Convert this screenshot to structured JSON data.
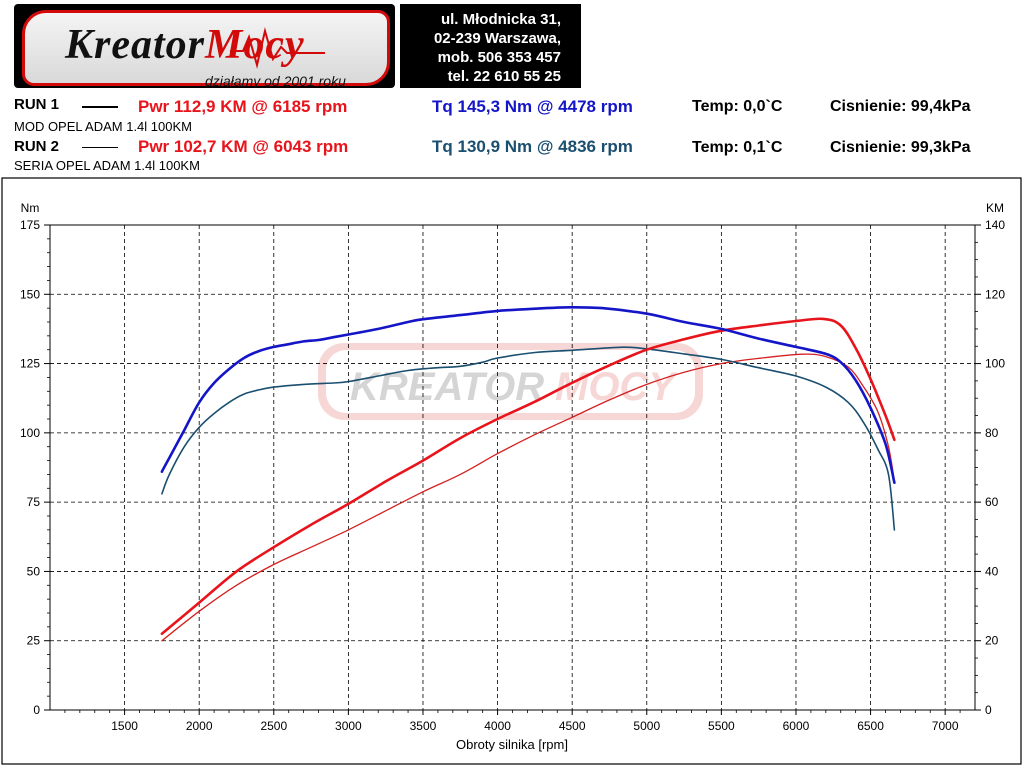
{
  "header": {
    "logo_part1": "Kreator",
    "logo_part2": "Mocy",
    "slogan": "działamy od 2001 roku",
    "address_line1": "ul. Młodnicka 31,",
    "address_line2": "02-239  Warszawa,",
    "mobile": "mob.  506 353 457",
    "phone": "tel.  22 610 55 25"
  },
  "runs": [
    {
      "label": "RUN 1",
      "description": "MOD OPEL ADAM  1.4l 100KM",
      "power": "Pwr  112,9 KM @ 6185 rpm",
      "torque": "Tq 145,3 Nm @ 4478 rpm",
      "temp": "Temp: 0,0`C",
      "pressure": "Cisnienie: 99,4kPa"
    },
    {
      "label": "RUN 2",
      "description": "SERIA OPEL ADAM 1.4l 100KM",
      "power": "Pwr  102,7 KM @ 6043 rpm",
      "torque": "Tq 130,9 Nm @ 4836 rpm",
      "temp": "Temp: 0,1`C",
      "pressure": "Cisnienie: 99,3kPa"
    }
  ],
  "chart_data": {
    "type": "line",
    "xlabel": "Obroty silnika [rpm]",
    "ylabel_left": "Nm",
    "ylabel_right": "KM",
    "xlim": [
      1000,
      7200
    ],
    "ylim_left": [
      0,
      175
    ],
    "ylim_right": [
      0,
      140
    ],
    "x_ticks": [
      1500,
      2000,
      2500,
      3000,
      3500,
      4000,
      4500,
      5000,
      5500,
      6000,
      6500,
      7000
    ],
    "y_ticks_left": [
      0,
      25,
      50,
      75,
      100,
      125,
      150,
      175
    ],
    "y_ticks_right": [
      0,
      20,
      40,
      60,
      80,
      100,
      120,
      140
    ],
    "grid": true,
    "colors": {
      "pwr_run1": "#e8141c",
      "pwr_run2": "#d42020",
      "tq_run1": "#1515c8",
      "tq_run2": "#1a4f70"
    },
    "series": [
      {
        "name": "Tq RUN 1",
        "axis": "left",
        "color": "#1515c8",
        "width": 2.6,
        "points": [
          [
            1750,
            86
          ],
          [
            1800,
            91
          ],
          [
            1900,
            101
          ],
          [
            2000,
            111
          ],
          [
            2100,
            118
          ],
          [
            2200,
            123
          ],
          [
            2300,
            127
          ],
          [
            2400,
            129.5
          ],
          [
            2500,
            131
          ],
          [
            2600,
            132
          ],
          [
            2700,
            133
          ],
          [
            2800,
            133.5
          ],
          [
            2900,
            134.5
          ],
          [
            3000,
            135.5
          ],
          [
            3200,
            137.5
          ],
          [
            3400,
            140
          ],
          [
            3500,
            141
          ],
          [
            3750,
            142.5
          ],
          [
            4000,
            144
          ],
          [
            4250,
            144.8
          ],
          [
            4478,
            145.3
          ],
          [
            4700,
            145
          ],
          [
            5000,
            143
          ],
          [
            5250,
            140
          ],
          [
            5500,
            137.5
          ],
          [
            5750,
            134
          ],
          [
            6000,
            131
          ],
          [
            6200,
            128.5
          ],
          [
            6300,
            125.5
          ],
          [
            6400,
            119
          ],
          [
            6500,
            109
          ],
          [
            6600,
            96
          ],
          [
            6660,
            82
          ]
        ]
      },
      {
        "name": "Tq RUN 2",
        "axis": "left",
        "color": "#1a4f70",
        "width": 1.6,
        "points": [
          [
            1750,
            78
          ],
          [
            1800,
            85
          ],
          [
            1900,
            95
          ],
          [
            2000,
            102
          ],
          [
            2100,
            107
          ],
          [
            2200,
            111
          ],
          [
            2300,
            114
          ],
          [
            2400,
            115.5
          ],
          [
            2500,
            116.5
          ],
          [
            2700,
            117.5
          ],
          [
            2900,
            118
          ],
          [
            3000,
            118.5
          ],
          [
            3200,
            120.5
          ],
          [
            3400,
            122.5
          ],
          [
            3600,
            123.5
          ],
          [
            3750,
            124
          ],
          [
            3900,
            125.5
          ],
          [
            4000,
            127
          ],
          [
            4250,
            129
          ],
          [
            4500,
            129.8
          ],
          [
            4836,
            130.9
          ],
          [
            5000,
            130.3
          ],
          [
            5250,
            128.5
          ],
          [
            5500,
            126.5
          ],
          [
            5750,
            123.5
          ],
          [
            6000,
            120.5
          ],
          [
            6200,
            116.5
          ],
          [
            6350,
            111
          ],
          [
            6450,
            104
          ],
          [
            6550,
            94
          ],
          [
            6620,
            85
          ],
          [
            6660,
            65
          ]
        ]
      },
      {
        "name": "Pwr RUN 1",
        "axis": "right",
        "color": "#e8141c",
        "width": 2.6,
        "points": [
          [
            1750,
            22
          ],
          [
            2000,
            31
          ],
          [
            2250,
            40
          ],
          [
            2500,
            47
          ],
          [
            2750,
            53.5
          ],
          [
            3000,
            59.5
          ],
          [
            3250,
            66
          ],
          [
            3500,
            72
          ],
          [
            3750,
            78.5
          ],
          [
            4000,
            84
          ],
          [
            4250,
            89
          ],
          [
            4478,
            94
          ],
          [
            4750,
            99.5
          ],
          [
            5000,
            104
          ],
          [
            5250,
            107
          ],
          [
            5500,
            109.5
          ],
          [
            5750,
            111
          ],
          [
            6000,
            112.3
          ],
          [
            6185,
            112.9
          ],
          [
            6300,
            111
          ],
          [
            6400,
            104.5
          ],
          [
            6500,
            95.5
          ],
          [
            6600,
            85
          ],
          [
            6660,
            78
          ]
        ]
      },
      {
        "name": "Pwr RUN 2",
        "axis": "right",
        "color": "#d42020",
        "width": 1.3,
        "points": [
          [
            1750,
            20
          ],
          [
            2000,
            28.5
          ],
          [
            2250,
            36
          ],
          [
            2500,
            42
          ],
          [
            2750,
            47
          ],
          [
            3000,
            52
          ],
          [
            3250,
            57.5
          ],
          [
            3500,
            63
          ],
          [
            3750,
            68
          ],
          [
            4000,
            74
          ],
          [
            4250,
            79.5
          ],
          [
            4500,
            84.5
          ],
          [
            4750,
            89.5
          ],
          [
            5000,
            94
          ],
          [
            5250,
            97.5
          ],
          [
            5500,
            100
          ],
          [
            5750,
            101.5
          ],
          [
            6043,
            102.7
          ],
          [
            6200,
            102
          ],
          [
            6350,
            99
          ],
          [
            6450,
            93.5
          ],
          [
            6550,
            86
          ],
          [
            6620,
            76
          ],
          [
            6660,
            66
          ]
        ]
      }
    ]
  }
}
